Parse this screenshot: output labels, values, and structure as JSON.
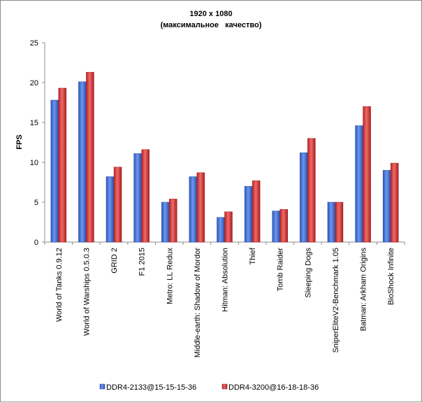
{
  "chart_data": {
    "type": "bar",
    "title": "1920 x 1080",
    "subtitle": "(максимальное   качество)",
    "xlabel": "",
    "ylabel": "FPS",
    "ylim": [
      0,
      25
    ],
    "yticks": [
      0,
      5,
      10,
      15,
      20,
      25
    ],
    "grid": false,
    "legend_position": "bottom",
    "categories": [
      "World of Tanks 0.9.12",
      "World of Warships 0.5.0.3",
      "GRID 2",
      "F1 2015",
      "Metro: LL Redux",
      "Middle-earth: Shadow of Mordor",
      "Hitman: Absolution",
      "Thief",
      "Tomb Raider",
      "Sleeping Dogs",
      "SniperEliteV2-Benchmark 1.05",
      "Batman: Arkham Origins",
      "BioShock Infinite"
    ],
    "series": [
      {
        "name": "DDR4-2133@15-15-15-36",
        "color": "#3f6fd6",
        "values": [
          17.8,
          20.1,
          8.2,
          11.1,
          5.0,
          8.2,
          3.1,
          7.0,
          3.9,
          11.2,
          5.0,
          14.6,
          9.0
        ]
      },
      {
        "name": "DDR4-3200@16-18-18-36",
        "color": "#d93a3a",
        "values": [
          19.3,
          21.3,
          9.4,
          11.6,
          5.4,
          8.7,
          3.8,
          7.7,
          4.1,
          13.0,
          5.0,
          17.0,
          9.9
        ]
      }
    ]
  }
}
